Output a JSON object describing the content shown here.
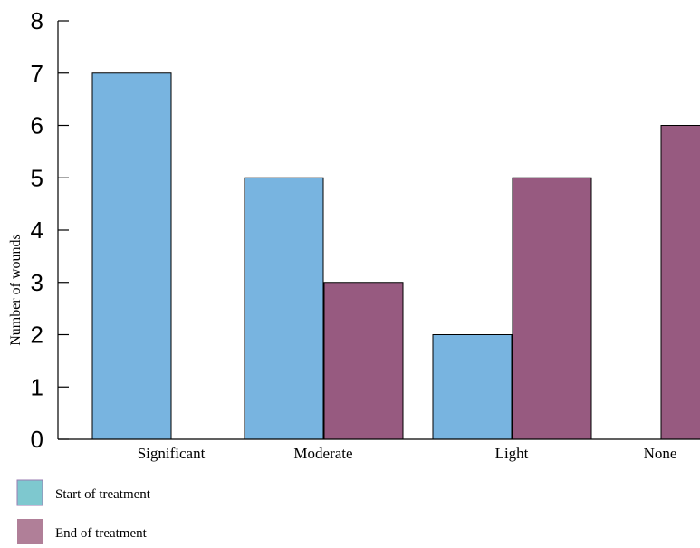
{
  "chart_data": {
    "type": "bar",
    "categories": [
      "Significant",
      "Moderate",
      "Light",
      "None"
    ],
    "series": [
      {
        "name": "Start of treatment",
        "values": [
          7,
          5,
          2,
          0
        ],
        "color": "#78b4e0"
      },
      {
        "name": "End of treatment",
        "values": [
          0,
          3,
          5,
          6
        ],
        "color": "#975a80"
      }
    ],
    "ylabel": "Number of wounds",
    "ylim": [
      0,
      8
    ],
    "yticks": [
      0,
      1,
      2,
      3,
      4,
      5,
      6,
      7,
      8
    ],
    "grid": false,
    "legend": {
      "placement": "bottom-left",
      "swatch_colors": [
        "#7ec8cf",
        "#b07f98"
      ]
    }
  }
}
